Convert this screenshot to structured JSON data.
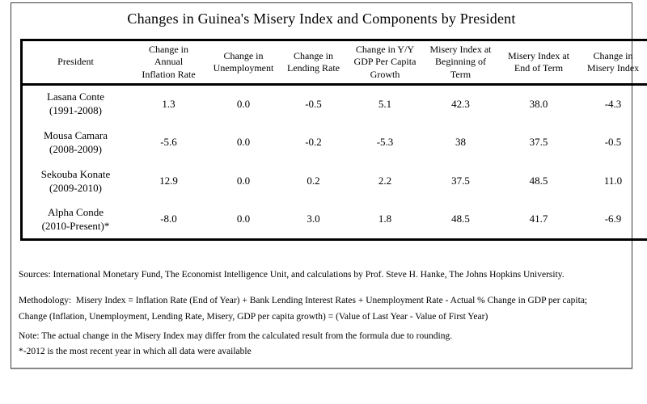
{
  "title": "Changes in Guinea's Misery Index and Components by President",
  "colors": {
    "table_border": "#000000",
    "frame_border": "#3c3c3c",
    "frame_bottom_border": "#888888",
    "text": "#000000",
    "background": "#ffffff"
  },
  "table": {
    "columns": [
      [
        "President"
      ],
      [
        "Change in",
        "Annual",
        "Inflation Rate"
      ],
      [
        "Change in",
        "Unemployment"
      ],
      [
        "Change in",
        "Lending Rate"
      ],
      [
        "Change in Y/Y",
        "GDP Per Capita",
        "Growth"
      ],
      [
        "Misery Index at",
        "Beginning of",
        "Term"
      ],
      [
        "Misery Index at",
        "End of Term"
      ],
      [
        "Change in",
        "Misery Index"
      ]
    ],
    "rows": [
      {
        "president": "Lasana Conte",
        "term": "(1991-2008)",
        "values": [
          "1.3",
          "0.0",
          "-0.5",
          "5.1",
          "42.3",
          "38.0",
          "-4.3"
        ]
      },
      {
        "president": "Mousa Camara",
        "term": "(2008-2009)",
        "values": [
          "-5.6",
          "0.0",
          "-0.2",
          "-5.3",
          "38",
          "37.5",
          "-0.5"
        ]
      },
      {
        "president": "Sekouba Konate",
        "term": "(2009-2010)",
        "values": [
          "12.9",
          "0.0",
          "0.2",
          "2.2",
          "37.5",
          "48.5",
          "11.0"
        ]
      },
      {
        "president": "Alpha Conde",
        "term": "(2010-Present)*",
        "values": [
          "-8.0",
          "0.0",
          "3.0",
          "1.8",
          "48.5",
          "41.7",
          "-6.9"
        ]
      }
    ]
  },
  "notes": {
    "sources": "Sources: International Monetary Fund, The Economist Intelligence Unit, and calculations by Prof. Steve H. Hanke, The Johns Hopkins University.",
    "methodology_line1": "Methodology:  Misery Index = Inflation Rate (End of Year) + Bank Lending Interest Rates + Unemployment Rate - Actual % Change in GDP per capita;",
    "methodology_line2": "Change (Inflation, Unemployment, Lending Rate, Misery, GDP per capita growth) = (Value of Last Year - Value of First Year)",
    "rounding_note": "Note: The actual change in the Misery Index may differ from the calculated result from the formula due to rounding.",
    "footnote": "*-2012 is the most recent year in which all data were available"
  }
}
